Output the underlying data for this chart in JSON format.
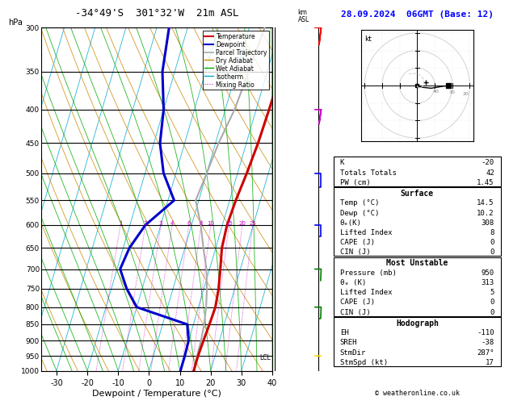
{
  "title_left": "-34°49'S  301°32'W  21m ASL",
  "title_right": "28.09.2024  06GMT (Base: 12)",
  "xlabel": "Dewpoint / Temperature (°C)",
  "temp_color": "#cc0000",
  "dewp_color": "#0000cc",
  "parcel_color": "#aaaaaa",
  "dry_adiabat_color": "#cc8800",
  "wet_adiabat_color": "#00aa00",
  "isotherm_color": "#00aacc",
  "mixing_ratio_color": "#cc00cc",
  "pressure_levels": [
    300,
    350,
    400,
    450,
    500,
    550,
    600,
    650,
    700,
    750,
    800,
    850,
    900,
    950,
    1000
  ],
  "temp_x": [
    14.5,
    14.5,
    14.2,
    13.8,
    13.0,
    12.0,
    11.5,
    12.0,
    13.5,
    14.8,
    15.5,
    15.2,
    14.8,
    14.5,
    14.5
  ],
  "dewp_x": [
    -26,
    -24,
    -20,
    -18,
    -14,
    -8,
    -15,
    -18,
    -19,
    -15,
    -10,
    8,
    10,
    10.2,
    10.2
  ],
  "parcel_x": [
    5,
    4,
    3,
    1,
    0,
    -1,
    3,
    6,
    9,
    11,
    12.5,
    13.5,
    14.0,
    14.2,
    14.5
  ],
  "xmin": -35,
  "xmax": 40,
  "pmin": 300,
  "pmax": 1000,
  "mixing_ratio_vals": [
    1,
    2,
    3,
    4,
    6,
    8,
    10,
    15,
    20,
    25
  ],
  "km_ticks": [
    1,
    2,
    3,
    4,
    5,
    6,
    7,
    8
  ],
  "km_pressures": [
    898,
    795,
    700,
    609,
    522,
    440,
    362,
    288
  ],
  "lcl_pressure": 952,
  "info_K": -20,
  "info_TT": 42,
  "info_PW": 1.45,
  "surf_temp": 14.5,
  "surf_dewp": 10.2,
  "surf_thetae": 308,
  "surf_li": 8,
  "surf_cape": 0,
  "surf_cin": 0,
  "mu_pressure": 950,
  "mu_thetae": 313,
  "mu_li": 5,
  "mu_cape": 0,
  "mu_cin": 0,
  "hodo_EH": -110,
  "hodo_SREH": -38,
  "hodo_StmDir": 287,
  "hodo_StmSpd": 17
}
